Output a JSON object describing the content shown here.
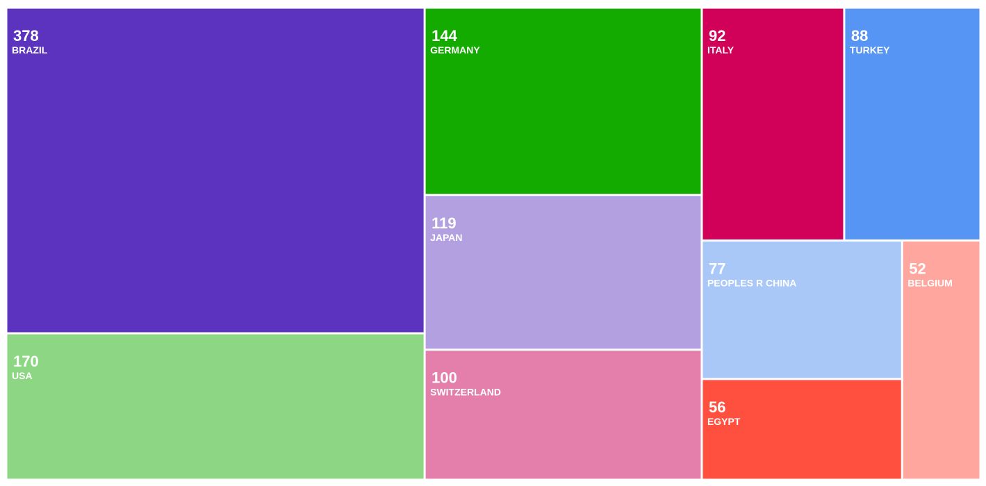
{
  "chart_data": {
    "type": "treemap",
    "categories": [
      "BRAZIL",
      "USA",
      "GERMANY",
      "JAPAN",
      "SWITZERLAND",
      "ITALY",
      "TURKEY",
      "PEOPLES R CHINA",
      "EGYPT",
      "BELGIUM"
    ],
    "values": [
      378,
      170,
      144,
      119,
      100,
      92,
      88,
      77,
      56,
      52
    ],
    "colors": [
      "#5c33be",
      "#8dd683",
      "#14ab00",
      "#b3a0e0",
      "#e47fab",
      "#d10058",
      "#5795f5",
      "#a9c8f7",
      "#ff4f3e",
      "#ffa69e"
    ]
  }
}
